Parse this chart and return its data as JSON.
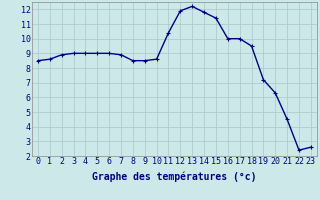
{
  "x": [
    0,
    1,
    2,
    3,
    4,
    5,
    6,
    7,
    8,
    9,
    10,
    11,
    12,
    13,
    14,
    15,
    16,
    17,
    18,
    19,
    20,
    21,
    22,
    23
  ],
  "y": [
    8.5,
    8.6,
    8.9,
    9.0,
    9.0,
    9.0,
    9.0,
    8.9,
    8.5,
    8.5,
    8.6,
    10.4,
    11.9,
    12.2,
    11.8,
    11.4,
    10.0,
    10.0,
    9.5,
    7.2,
    6.3,
    4.5,
    2.4,
    2.6
  ],
  "xlabel": "Graphe des températures (°c)",
  "ylim": [
    2,
    12.5
  ],
  "xlim_min": -0.5,
  "xlim_max": 23.5,
  "yticks": [
    2,
    3,
    4,
    5,
    6,
    7,
    8,
    9,
    10,
    11,
    12
  ],
  "xticks": [
    0,
    1,
    2,
    3,
    4,
    5,
    6,
    7,
    8,
    9,
    10,
    11,
    12,
    13,
    14,
    15,
    16,
    17,
    18,
    19,
    20,
    21,
    22,
    23
  ],
  "line_color": "#00008b",
  "marker": "+",
  "bg_color": "#cce8e8",
  "grid_color": "#aac8c8",
  "axis_label_color": "#00008b",
  "tick_label_color": "#00008b",
  "xlabel_fontsize": 7.0,
  "tick_fontsize": 6.0,
  "linewidth": 1.0,
  "markersize": 3.5,
  "markeredgewidth": 0.8
}
